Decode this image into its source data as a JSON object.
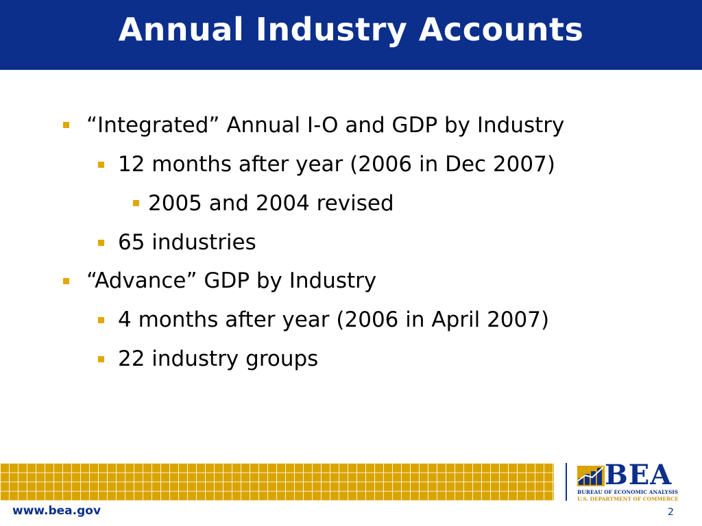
{
  "slide": {
    "title": "Annual Industry Accounts",
    "bullets": [
      {
        "text": "“Integrated” Annual I-O and GDP by Industry",
        "level": 1
      },
      {
        "text": "12 months after year (2006 in Dec 2007)",
        "level": 2
      },
      {
        "text": "2005 and 2004 revised",
        "level": 3
      },
      {
        "text": "65 industries",
        "level": 2
      },
      {
        "text": "“Advance” GDP by Industry",
        "level": 1
      },
      {
        "text": "4 months after year (2006 in April 2007)",
        "level": 2
      },
      {
        "text": "22 industry groups",
        "level": 2
      }
    ]
  },
  "footer": {
    "url": "www.bea.gov",
    "page_number": "2",
    "logo": {
      "name": "BEA",
      "subtitle": "BUREAU OF ECONOMIC ANALYSIS",
      "department": "U.S. DEPARTMENT OF COMMERCE"
    }
  },
  "colors": {
    "title_bar": "#0b2f8a",
    "bullet_marker": "#e0a800",
    "footer_band": "#d9a400"
  }
}
